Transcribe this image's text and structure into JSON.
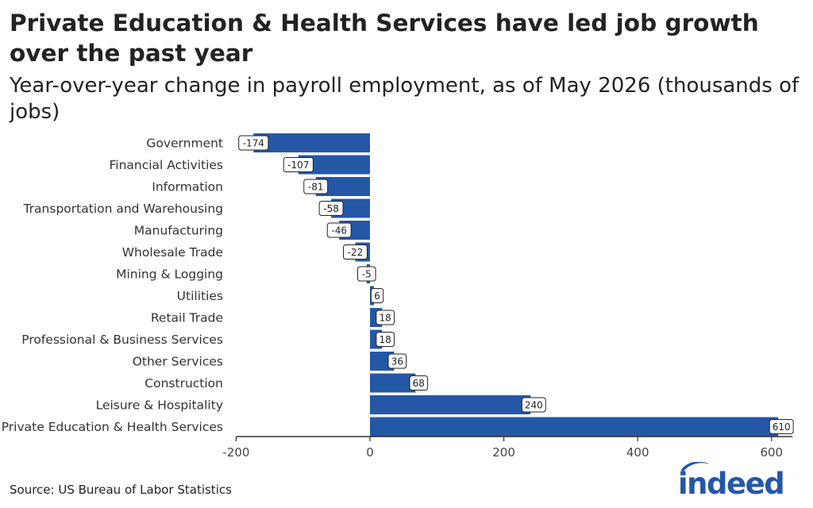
{
  "title": "Private Education & Health Services have led job growth over the past year",
  "subtitle": "Year-over-year change in payroll employment, as of May 2026 (thousands of jobs)",
  "source": "Source: US Bureau of Labor Statistics",
  "logo_text": "indeed",
  "colors": {
    "bar": "#2557a7",
    "axis": "#333333",
    "label_border": "#222222"
  },
  "chart_data": {
    "type": "bar",
    "orientation": "horizontal",
    "categories": [
      "Government",
      "Financial Activities",
      "Information",
      "Transportation and Warehousing",
      "Manufacturing",
      "Wholesale Trade",
      "Mining & Logging",
      "Utilities",
      "Retail Trade",
      "Professional & Business Services",
      "Other Services",
      "Construction",
      "Leisure & Hospitality",
      "Private Education & Health Services"
    ],
    "values": [
      -174,
      -107,
      -81,
      -58,
      -46,
      -22,
      -5,
      6,
      18,
      18,
      36,
      68,
      240,
      610
    ],
    "xlim": [
      -200,
      610
    ],
    "xticks": [
      -200,
      0,
      200,
      400,
      600
    ],
    "grid": false
  }
}
